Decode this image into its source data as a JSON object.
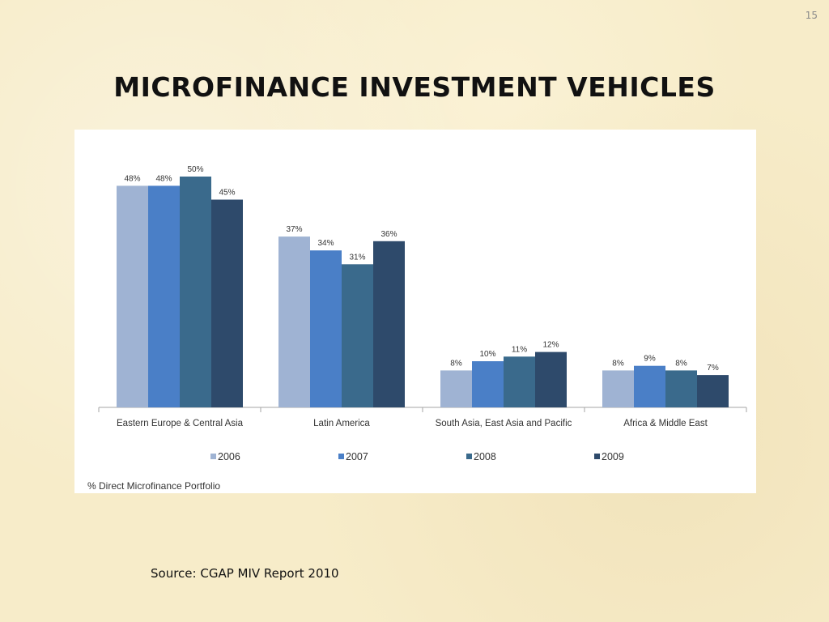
{
  "slide": {
    "number": "15",
    "title": "MICROFINANCE INVESTMENT VEHICLES",
    "source": "Source: CGAP MIV Report 2010"
  },
  "chart_data": {
    "type": "bar",
    "categories": [
      "Eastern Europe & Central Asia",
      "Latin America",
      "South Asia, East Asia and Pacific",
      "Africa & Middle East"
    ],
    "series": [
      {
        "name": "2006",
        "color": "#9fb3d3",
        "values": [
          48,
          37,
          8,
          8
        ]
      },
      {
        "name": "2007",
        "color": "#4a7fc7",
        "values": [
          48,
          34,
          10,
          9
        ]
      },
      {
        "name": "2008",
        "color": "#3a6a8c",
        "values": [
          50,
          31,
          11,
          8
        ]
      },
      {
        "name": "2009",
        "color": "#2e4a6b",
        "values": [
          45,
          36,
          12,
          7
        ]
      }
    ],
    "value_suffix": "%",
    "footnote": "% Direct Microfinance Portfolio",
    "ylim": [
      0,
      55
    ],
    "grid": false,
    "legend_position": "bottom"
  }
}
